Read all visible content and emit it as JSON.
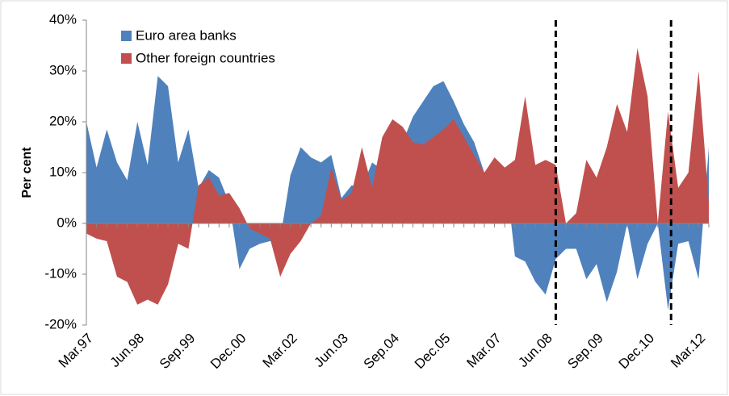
{
  "chart_data": {
    "type": "area",
    "y_label": "Per cent",
    "categories": [
      "Mar.97",
      null,
      null,
      null,
      null,
      "Jun.98",
      null,
      null,
      null,
      null,
      "Sep.99",
      null,
      null,
      null,
      null,
      "Dec.00",
      null,
      null,
      null,
      null,
      "Mar.02",
      null,
      null,
      null,
      null,
      "Jun.03",
      null,
      null,
      null,
      null,
      "Sep.04",
      null,
      null,
      null,
      null,
      "Dec.05",
      null,
      null,
      null,
      null,
      "Mar.07",
      null,
      null,
      null,
      null,
      "Jun.08",
      null,
      null,
      null,
      null,
      "Sep.09",
      null,
      null,
      null,
      null,
      "Dec.10",
      null,
      null,
      null,
      null,
      "Mar.12",
      null
    ],
    "series": [
      {
        "name": "Euro area banks",
        "color": "#4f81bd",
        "values": [
          20,
          11,
          18.5,
          12,
          8.5,
          20,
          11.5,
          29,
          27,
          12,
          18.5,
          7,
          10.5,
          9,
          4,
          -9,
          -5,
          -4,
          -3.5,
          -3,
          9.5,
          15,
          13,
          12,
          13.5,
          5,
          7.5,
          7,
          12,
          10.5,
          15,
          16,
          21,
          24,
          27,
          28,
          24,
          19.5,
          16,
          10,
          11,
          11,
          -6.5,
          -7.5,
          -11.5,
          -14,
          -7,
          -5,
          -5,
          -11,
          -8,
          -15.5,
          -9.5,
          0,
          -11,
          -4,
          0,
          -17,
          -4,
          -3.5,
          -11,
          15
        ]
      },
      {
        "name": "Other foreign countries",
        "color": "#c0504d",
        "values": [
          -2,
          -3,
          -3.5,
          -10.5,
          -11.5,
          -16,
          -15,
          -16,
          -12,
          -4,
          -5,
          7.5,
          9,
          5.5,
          6,
          3,
          -1,
          -2,
          -3,
          -10.5,
          -6,
          -3.5,
          0,
          1.5,
          11,
          4.5,
          6,
          15,
          7,
          17,
          20.5,
          19,
          16,
          15.5,
          17,
          18.5,
          20.5,
          17,
          13.5,
          10,
          13,
          11,
          12.5,
          25,
          11.5,
          12.5,
          11.5,
          0,
          2,
          12.5,
          9,
          15,
          23.5,
          18,
          34.5,
          25,
          0,
          22,
          7,
          10,
          30,
          4
        ]
      }
    ],
    "ylim": [
      -20,
      40
    ],
    "yticks": [
      {
        "value": -20,
        "label": "-20%"
      },
      {
        "value": -10,
        "label": "-10%"
      },
      {
        "value": 0,
        "label": "0%"
      },
      {
        "value": 10,
        "label": "10%"
      },
      {
        "value": 20,
        "label": "20%"
      },
      {
        "value": 30,
        "label": "30%"
      },
      {
        "value": 40,
        "label": "40%"
      }
    ],
    "vlines": [
      46,
      57.3
    ],
    "legend": "upper left"
  }
}
